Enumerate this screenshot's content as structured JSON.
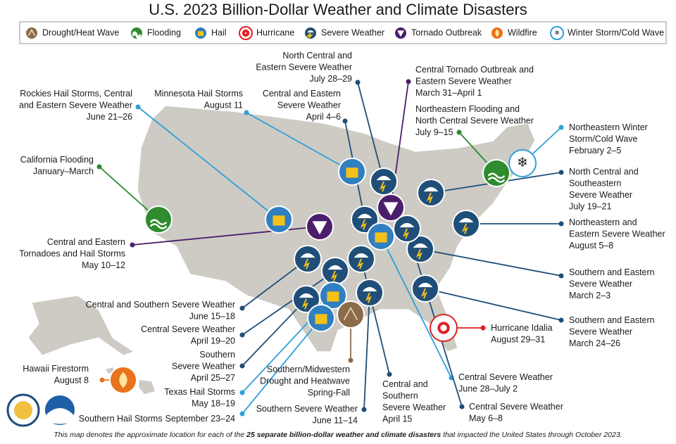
{
  "title": "U.S. 2023 Billion-Dollar Weather and Climate Disasters",
  "legend": [
    "Drought/Heat Wave",
    "Flooding",
    "Hail",
    "Hurricane",
    "Severe Weather",
    "Tornado Outbreak",
    "Wildfire",
    "Winter Storm/Cold Wave"
  ],
  "events": [
    {
      "lines": [
        "North Central and",
        "Eastern Severe Weather"
      ],
      "date": "July 28–29"
    },
    {
      "lines": [
        "Central Tornado Outbreak and",
        "Eastern Severe Weather"
      ],
      "date": "March 31–April 1"
    },
    {
      "lines": [
        "Rockies Hail Storms, Central",
        "and Eastern Severe Weather"
      ],
      "date": "June 21–26"
    },
    {
      "lines": [
        "Minnesota Hail Storms"
      ],
      "date": "August 11"
    },
    {
      "lines": [
        "Central and Eastern",
        "Severe Weather"
      ],
      "date": "April 4–6"
    },
    {
      "lines": [
        "Northeastern Flooding and",
        "North Central Severe Weather"
      ],
      "date": "July 9–15"
    },
    {
      "lines": [
        "Northeastern Winter",
        "Storm/Cold Wave"
      ],
      "date": "February 2–5"
    },
    {
      "lines": [
        "California Flooding"
      ],
      "date": "January–March"
    },
    {
      "lines": [
        "North Central and",
        "Southeastern",
        "Severe Weather"
      ],
      "date": "July 19–21"
    },
    {
      "lines": [
        "Northeastern and",
        "Eastern Severe Weather"
      ],
      "date": "August 5–8"
    },
    {
      "lines": [
        "Central and Eastern",
        "Tornadoes and Hail Storms"
      ],
      "date": "May 10–12"
    },
    {
      "lines": [
        "Southern and Eastern",
        "Severe Weather"
      ],
      "date": "March 2–3"
    },
    {
      "lines": [
        "Southern and Eastern",
        "Severe Weather"
      ],
      "date": "March 24–26"
    },
    {
      "lines": [
        "Central and Southern Severe Weather"
      ],
      "date": "June 15–18"
    },
    {
      "lines": [
        "Central Severe Weather"
      ],
      "date": "April 19–20"
    },
    {
      "lines": [
        "Southern",
        "Severe Weather"
      ],
      "date": "April 25–27"
    },
    {
      "lines": [
        "Texas Hail Storms"
      ],
      "date": "May 18–19"
    },
    {
      "lines": [
        "Southern Hail Storms"
      ],
      "date": "September 23–24"
    },
    {
      "lines": [
        "Hawaii Firestorm"
      ],
      "date": "August 8"
    },
    {
      "lines": [
        "Southern/Midwestern",
        "Drought and Heatwave"
      ],
      "date": "Spring-Fall"
    },
    {
      "lines": [
        "Southern Severe Weather"
      ],
      "date": "June 11–14"
    },
    {
      "lines": [
        "Central and",
        "Southern",
        "Severe Weather"
      ],
      "date": "April 15"
    },
    {
      "lines": [
        "Central Severe Weather"
      ],
      "date": "June 28–July 2"
    },
    {
      "lines": [
        "Central Severe Weather"
      ],
      "date": "May 6–8"
    },
    {
      "lines": [
        "Hurricane Idalia"
      ],
      "date": "August 29–31"
    }
  ],
  "footnote": {
    "before": "This map denotes the approximate location for each of the ",
    "bold": "25 separate billion-dollar weather and climate disasters",
    "after": " that impacted the United States through October 2023."
  }
}
